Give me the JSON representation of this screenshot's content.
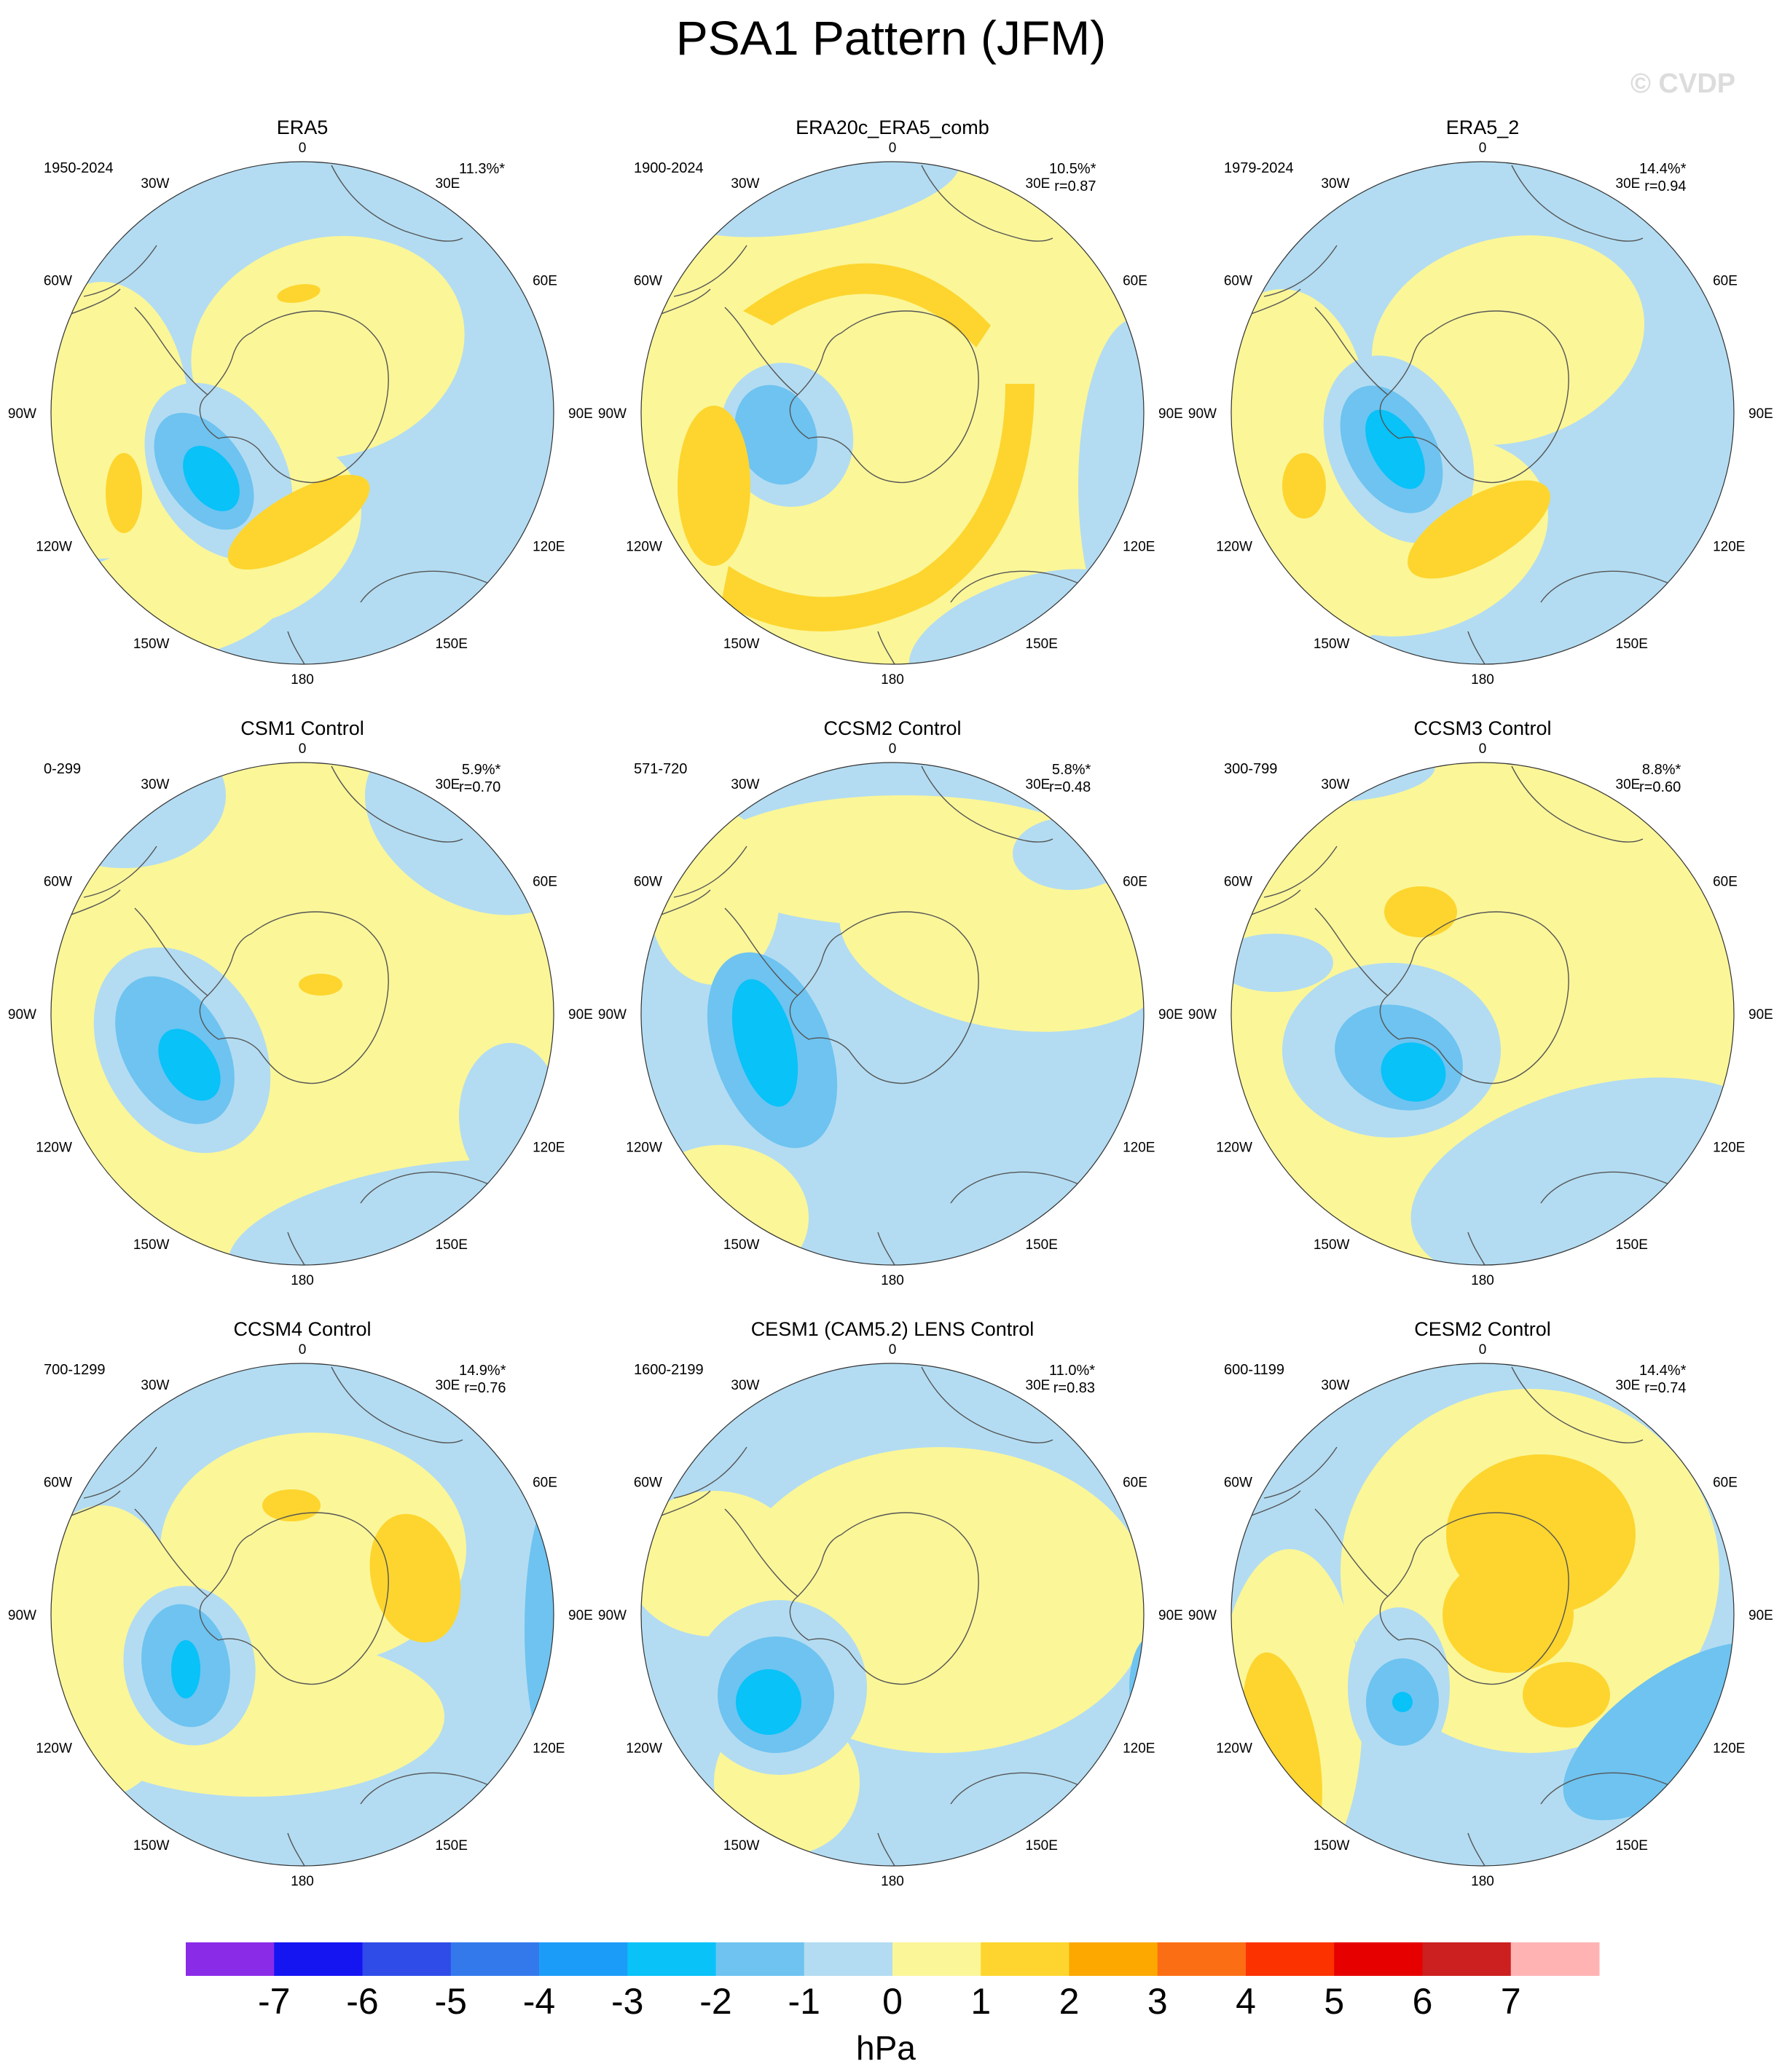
{
  "title": "PSA1 Pattern (JFM)",
  "watermark": "© CVDP",
  "unit": "hPa",
  "colors": {
    "neg1": "#b3dcf2",
    "neg2": "#6ec3f0",
    "neg3": "#08c2f8",
    "pos1": "#fbf698",
    "pos2": "#fdd52e",
    "coast": "#555555"
  },
  "lon_labels": [
    "0",
    "30E",
    "60E",
    "90E",
    "120E",
    "150E",
    "180",
    "150W",
    "120W",
    "90W",
    "60W",
    "30W"
  ],
  "panels": [
    {
      "title": "ERA5",
      "years": "1950-2024",
      "pct": "11.3%*",
      "r": ""
    },
    {
      "title": "ERA20c_ERA5_comb",
      "years": "1900-2024",
      "pct": "10.5%*",
      "r": "r=0.87"
    },
    {
      "title": "ERA5_2",
      "years": "1979-2024",
      "pct": "14.4%*",
      "r": "r=0.94"
    },
    {
      "title": "CSM1 Control",
      "years": "0-299",
      "pct": "5.9%*",
      "r": "r=0.70"
    },
    {
      "title": "CCSM2 Control",
      "years": "571-720",
      "pct": "5.8%*",
      "r": "r=0.48"
    },
    {
      "title": "CCSM3 Control",
      "years": "300-799",
      "pct": "8.8%*",
      "r": "r=0.60"
    },
    {
      "title": "CCSM4 Control",
      "years": "700-1299",
      "pct": "14.9%*",
      "r": "r=0.76"
    },
    {
      "title": "CESM1 (CAM5.2) LENS Control",
      "years": "1600-2199",
      "pct": "11.0%*",
      "r": "r=0.83"
    },
    {
      "title": "CESM2 Control",
      "years": "600-1199",
      "pct": "14.4%*",
      "r": "r=0.74"
    }
  ],
  "colorbar": {
    "colors": [
      "#8a2be8",
      "#1515f2",
      "#2f4be8",
      "#3479ec",
      "#1c9cf9",
      "#08c2f8",
      "#6ec3f0",
      "#b3dcf2",
      "#fbf698",
      "#fdd52e",
      "#fca800",
      "#fc6e14",
      "#fc3200",
      "#e60000",
      "#cc1f1f",
      "#ffb3b3"
    ],
    "labels": [
      "-7",
      "-6",
      "-5",
      "-4",
      "-3",
      "-2",
      "-1",
      "0",
      "1",
      "2",
      "3",
      "4",
      "5",
      "6",
      "7"
    ]
  }
}
